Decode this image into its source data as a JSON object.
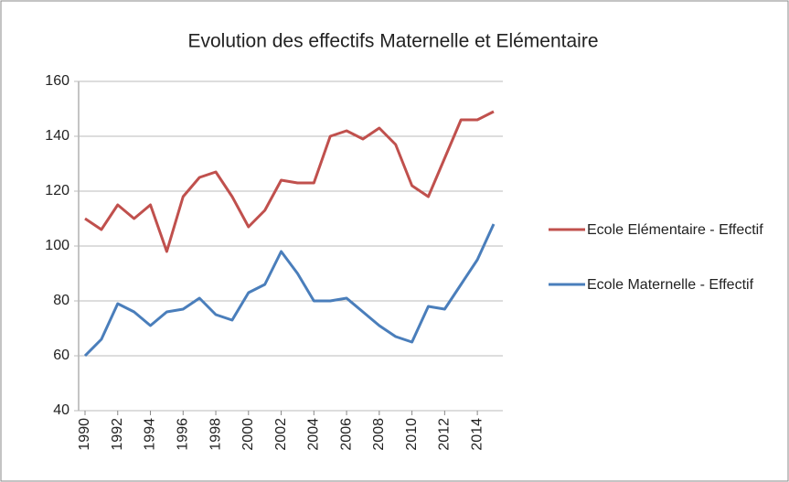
{
  "chart_data": {
    "type": "line",
    "title": "Evolution des effectifs Maternelle et Elémentaire",
    "x": [
      1990,
      1991,
      1992,
      1993,
      1994,
      1995,
      1996,
      1997,
      1998,
      1999,
      2000,
      2001,
      2002,
      2003,
      2004,
      2005,
      2006,
      2007,
      2008,
      2009,
      2010,
      2011,
      2012,
      2013,
      2014,
      2015
    ],
    "series": [
      {
        "name": "Ecole Elémentaire - Effectif",
        "color": "#c0504d",
        "values": [
          110,
          106,
          115,
          110,
          115,
          98,
          118,
          125,
          127,
          118,
          107,
          113,
          124,
          123,
          123,
          140,
          142,
          139,
          143,
          137,
          122,
          118,
          132,
          146,
          146,
          149
        ]
      },
      {
        "name": "Ecole Maternelle - Effectif",
        "color": "#4a7ebb",
        "values": [
          60,
          66,
          79,
          76,
          71,
          76,
          77,
          81,
          75,
          73,
          83,
          86,
          98,
          90,
          80,
          80,
          81,
          76,
          71,
          67,
          65,
          78,
          77,
          86,
          95,
          108
        ]
      }
    ],
    "xlim": [
      1990,
      2015
    ],
    "xticks": [
      1990,
      1992,
      1994,
      1996,
      1998,
      2000,
      2002,
      2004,
      2006,
      2008,
      2010,
      2012,
      2014
    ],
    "ylim": [
      40,
      160
    ],
    "yticks": [
      40,
      60,
      80,
      100,
      120,
      140,
      160
    ],
    "grid": true,
    "legend": "right"
  }
}
